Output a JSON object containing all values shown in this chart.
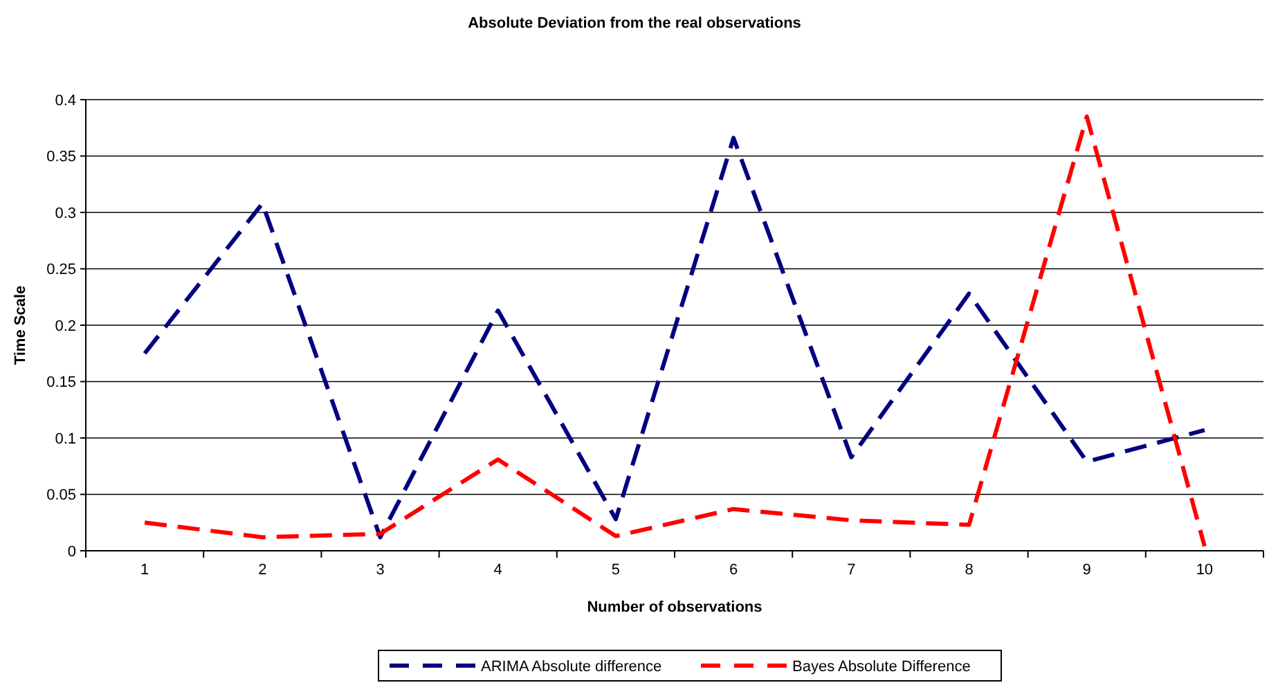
{
  "chart_data": {
    "type": "line",
    "title": "Absolute Deviation from the real observations",
    "xlabel": "Number of observations",
    "ylabel": "Time Scale",
    "categories": [
      "1",
      "2",
      "3",
      "4",
      "5",
      "6",
      "7",
      "8",
      "9",
      "10"
    ],
    "series": [
      {
        "name": "ARIMA Absolute difference",
        "color": "#000080",
        "line_style": "dashed",
        "values": [
          0.175,
          0.308,
          0.012,
          0.213,
          0.028,
          0.366,
          0.083,
          0.228,
          0.079,
          0.107
        ]
      },
      {
        "name": "Bayes Absolute Difference",
        "color": "#ff0000",
        "line_style": "dashed",
        "values": [
          0.025,
          0.012,
          0.015,
          0.081,
          0.013,
          0.037,
          0.027,
          0.023,
          0.385,
          0.004
        ]
      }
    ],
    "ylim": [
      0,
      0.4
    ],
    "yticks": [
      0,
      0.05,
      0.1,
      0.15,
      0.2,
      0.25,
      0.3,
      0.35,
      0.4
    ],
    "grid": "y",
    "legend": "bottom",
    "marker": "none"
  }
}
